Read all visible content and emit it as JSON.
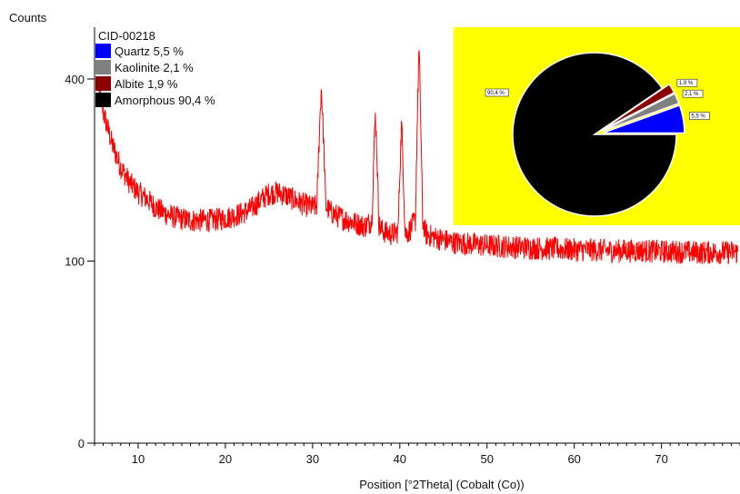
{
  "chart_data": {
    "type": "line",
    "ylabel": "Counts",
    "xlabel": "Position [°2Theta] (Cobalt (Co))",
    "xlim": [
      5,
      79
    ],
    "ylim_sqrt": [
      0,
      400
    ],
    "scale": "square-root",
    "x_ticks": [
      10,
      20,
      30,
      40,
      50,
      60,
      70
    ],
    "x_tick_labels": [
      "10",
      "20",
      "30",
      "40",
      "50",
      "60",
      "70"
    ],
    "y_ticks": [
      0,
      100,
      400
    ],
    "y_tick_labels": [
      "0",
      "100",
      "400"
    ],
    "grid": false,
    "series_color": "#ff0000",
    "pattern": {
      "name": "CID-00218",
      "x": [
        5.5,
        6,
        7,
        8,
        9,
        10,
        11,
        12,
        13,
        14,
        15,
        16,
        17,
        18,
        19,
        20,
        21,
        22,
        23,
        24,
        25,
        26,
        27,
        28,
        29,
        30,
        30.5,
        31,
        31.5,
        32,
        33,
        34,
        35,
        36,
        36.8,
        37.2,
        37.6,
        38,
        39,
        39.8,
        40.2,
        40.6,
        41,
        41.8,
        42.2,
        42.6,
        43,
        44,
        45,
        46,
        48,
        50,
        52,
        54,
        56,
        58,
        60,
        62,
        64,
        66,
        68,
        70,
        72,
        74,
        76,
        78.8
      ],
      "y": [
        380,
        330,
        270,
        230,
        205,
        190,
        180,
        168,
        160,
        155,
        152,
        150,
        150,
        150,
        151,
        153,
        156,
        160,
        166,
        178,
        188,
        190,
        185,
        178,
        172,
        168,
        170,
        385,
        170,
        162,
        155,
        150,
        146,
        142,
        150,
        330,
        145,
        136,
        132,
        135,
        310,
        132,
        135,
        150,
        470,
        150,
        132,
        128,
        125,
        122,
        120,
        118,
        117,
        116,
        115,
        114,
        113,
        113,
        112,
        112,
        112,
        111,
        111,
        110,
        110,
        110
      ]
    },
    "legend": {
      "position": "top-left",
      "title": "CID-00218",
      "entries": [
        {
          "label": "Quartz 5,5 %",
          "color": "#0000ff"
        },
        {
          "label": "Kaolinite 2,1 %",
          "color": "#808080"
        },
        {
          "label": "Albite 1,9 %",
          "color": "#8b0000"
        },
        {
          "label": "Amorphous 90,4 %",
          "color": "#000000"
        }
      ]
    },
    "inset_pie": {
      "type": "pie",
      "background": "#ffff00",
      "slices": [
        {
          "phase": "Amorphous",
          "value": 90.4,
          "label": "90,4 %",
          "color": "#000000"
        },
        {
          "phase": "Albite",
          "value": 1.9,
          "label": "1,9 %",
          "color": "#8b0000"
        },
        {
          "phase": "Kaolinite",
          "value": 2.1,
          "label": "2,1 %",
          "color": "#808080"
        },
        {
          "phase": "Quartz",
          "value": 5.5,
          "label": "5,5 %",
          "color": "#0000ff"
        }
      ]
    }
  }
}
